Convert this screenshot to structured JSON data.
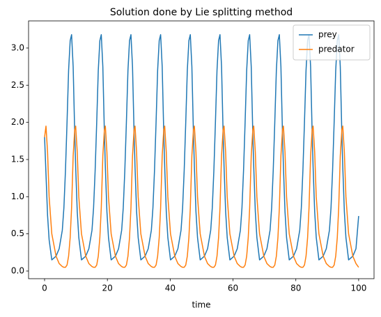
{
  "chart_data": {
    "type": "line",
    "title": "Solution done by Lie splitting method",
    "x_label": "time",
    "x": [
      0,
      0.45,
      0.95,
      1.45,
      2.3,
      3.65,
      4.65,
      5.65,
      6.15,
      6.65,
      7.15,
      7.65,
      8.15,
      8.6,
      9.1,
      9.6,
      9.9,
      10.4,
      10.9,
      11.75,
      13.1,
      14.1,
      15.1,
      15.6,
      16.1,
      16.6,
      17.1,
      17.6,
      18.05,
      18.55,
      19.05,
      19.35,
      19.85,
      20.35,
      21.2,
      22.55,
      23.55,
      24.55,
      25.05,
      25.55,
      26.05,
      26.55,
      27.05,
      27.5,
      28,
      28.5,
      28.8,
      29.3,
      29.8,
      30.65,
      32,
      33,
      34,
      34.5,
      35,
      35.5,
      36,
      36.5,
      36.95,
      37.45,
      37.95,
      38.25,
      38.75,
      39.25,
      40.1,
      41.45,
      42.45,
      43.45,
      43.95,
      44.45,
      44.95,
      45.45,
      45.95,
      46.4,
      46.9,
      47.4,
      47.7,
      48.2,
      48.7,
      49.55,
      50.9,
      51.9,
      52.9,
      53.4,
      53.9,
      54.4,
      54.9,
      55.4,
      55.85,
      56.35,
      56.85,
      57.15,
      57.65,
      58.15,
      59,
      60.35,
      61.35,
      62.35,
      62.85,
      63.35,
      63.85,
      64.35,
      64.85,
      65.3,
      65.8,
      66.3,
      66.6,
      67.1,
      67.6,
      68.45,
      69.8,
      70.8,
      71.8,
      72.3,
      72.8,
      73.3,
      73.8,
      74.3,
      74.75,
      75.25,
      75.75,
      76.05,
      76.55,
      77.05,
      77.9,
      79.25,
      80.25,
      81.25,
      81.75,
      82.25,
      82.75,
      83.25,
      83.75,
      84.2,
      84.7,
      85.2,
      85.5,
      86,
      86.5,
      87.35,
      88.7,
      89.7,
      90.7,
      91.2,
      91.7,
      92.2,
      92.7,
      93.2,
      93.65,
      94.15,
      94.65,
      94.95,
      95.45,
      95.95,
      96.8,
      98.15,
      99.15,
      100
    ],
    "series": [
      {
        "name": "prey",
        "color": "#1f77b4",
        "values": [
          1.8,
          1.3,
          0.75,
          0.42,
          0.15,
          0.2,
          0.3,
          0.55,
          0.85,
          1.35,
          2.0,
          2.7,
          3.1,
          3.18,
          2.75,
          1.85,
          1.4,
          0.8,
          0.45,
          0.15,
          0.2,
          0.3,
          0.55,
          0.85,
          1.35,
          2.0,
          2.7,
          3.1,
          3.18,
          2.75,
          1.85,
          1.4,
          0.8,
          0.45,
          0.15,
          0.2,
          0.3,
          0.55,
          0.85,
          1.35,
          2.0,
          2.7,
          3.1,
          3.18,
          2.75,
          1.85,
          1.4,
          0.8,
          0.45,
          0.15,
          0.2,
          0.3,
          0.55,
          0.85,
          1.35,
          2.0,
          2.7,
          3.1,
          3.18,
          2.75,
          1.85,
          1.4,
          0.8,
          0.45,
          0.15,
          0.2,
          0.3,
          0.55,
          0.85,
          1.35,
          2.0,
          2.7,
          3.1,
          3.18,
          2.75,
          1.85,
          1.4,
          0.8,
          0.45,
          0.15,
          0.2,
          0.3,
          0.55,
          0.85,
          1.35,
          2.0,
          2.7,
          3.1,
          3.18,
          2.75,
          1.85,
          1.4,
          0.8,
          0.45,
          0.15,
          0.2,
          0.3,
          0.55,
          0.85,
          1.35,
          2.0,
          2.7,
          3.1,
          3.18,
          2.75,
          1.85,
          1.4,
          0.8,
          0.45,
          0.15,
          0.2,
          0.3,
          0.55,
          0.85,
          1.35,
          2.0,
          2.7,
          3.1,
          3.18,
          2.75,
          1.85,
          1.4,
          0.8,
          0.45,
          0.15,
          0.2,
          0.3,
          0.55,
          0.85,
          1.35,
          2.0,
          2.7,
          3.1,
          3.18,
          2.75,
          1.85,
          1.4,
          0.8,
          0.45,
          0.15,
          0.2,
          0.3,
          0.55,
          0.85,
          1.35,
          2.0,
          2.7,
          3.1,
          3.18,
          2.75,
          1.85,
          1.4,
          0.8,
          0.45,
          0.15,
          0.2,
          0.3,
          0.74
        ]
      },
      {
        "name": "predator",
        "color": "#ff7f0e",
        "values": [
          1.8,
          1.95,
          1.6,
          1.0,
          0.5,
          0.2,
          0.1,
          0.06,
          0.05,
          0.05,
          0.08,
          0.2,
          0.45,
          0.85,
          1.55,
          1.9,
          1.95,
          1.6,
          1.0,
          0.5,
          0.2,
          0.1,
          0.06,
          0.05,
          0.05,
          0.08,
          0.2,
          0.45,
          0.85,
          1.55,
          1.9,
          1.95,
          1.6,
          1.0,
          0.5,
          0.2,
          0.1,
          0.06,
          0.05,
          0.05,
          0.08,
          0.2,
          0.45,
          0.85,
          1.55,
          1.9,
          1.95,
          1.6,
          1.0,
          0.5,
          0.2,
          0.1,
          0.06,
          0.05,
          0.05,
          0.08,
          0.2,
          0.45,
          0.85,
          1.55,
          1.9,
          1.95,
          1.6,
          1.0,
          0.5,
          0.2,
          0.1,
          0.06,
          0.05,
          0.05,
          0.08,
          0.2,
          0.45,
          0.85,
          1.55,
          1.9,
          1.95,
          1.6,
          1.0,
          0.5,
          0.2,
          0.1,
          0.06,
          0.05,
          0.05,
          0.08,
          0.2,
          0.45,
          0.85,
          1.55,
          1.9,
          1.95,
          1.6,
          1.0,
          0.5,
          0.2,
          0.1,
          0.06,
          0.05,
          0.05,
          0.08,
          0.2,
          0.45,
          0.85,
          1.55,
          1.9,
          1.95,
          1.6,
          1.0,
          0.5,
          0.2,
          0.1,
          0.06,
          0.05,
          0.05,
          0.08,
          0.2,
          0.45,
          0.85,
          1.55,
          1.9,
          1.95,
          1.6,
          1.0,
          0.5,
          0.2,
          0.1,
          0.06,
          0.05,
          0.05,
          0.08,
          0.2,
          0.45,
          0.85,
          1.55,
          1.9,
          1.95,
          1.6,
          1.0,
          0.5,
          0.2,
          0.1,
          0.06,
          0.05,
          0.05,
          0.08,
          0.2,
          0.45,
          0.85,
          1.55,
          1.9,
          1.95,
          1.6,
          1.0,
          0.5,
          0.2,
          0.1,
          0.05
        ]
      }
    ],
    "xlim": [
      -5.1,
      104.9
    ],
    "xticks": [
      0,
      20,
      40,
      60,
      80,
      100
    ],
    "ylim": [
      -0.103,
      3.365
    ],
    "yticks": [
      {
        "value": 0,
        "label": "0.0"
      },
      {
        "value": 0.5,
        "label": "0.5"
      },
      {
        "value": 1,
        "label": "1.0"
      },
      {
        "value": 1.5,
        "label": "1.5"
      },
      {
        "value": 2,
        "label": "2.0"
      },
      {
        "value": 2.5,
        "label": "2.5"
      },
      {
        "value": 3,
        "label": "3.0"
      }
    ],
    "legend": "upper right",
    "grid": false
  }
}
